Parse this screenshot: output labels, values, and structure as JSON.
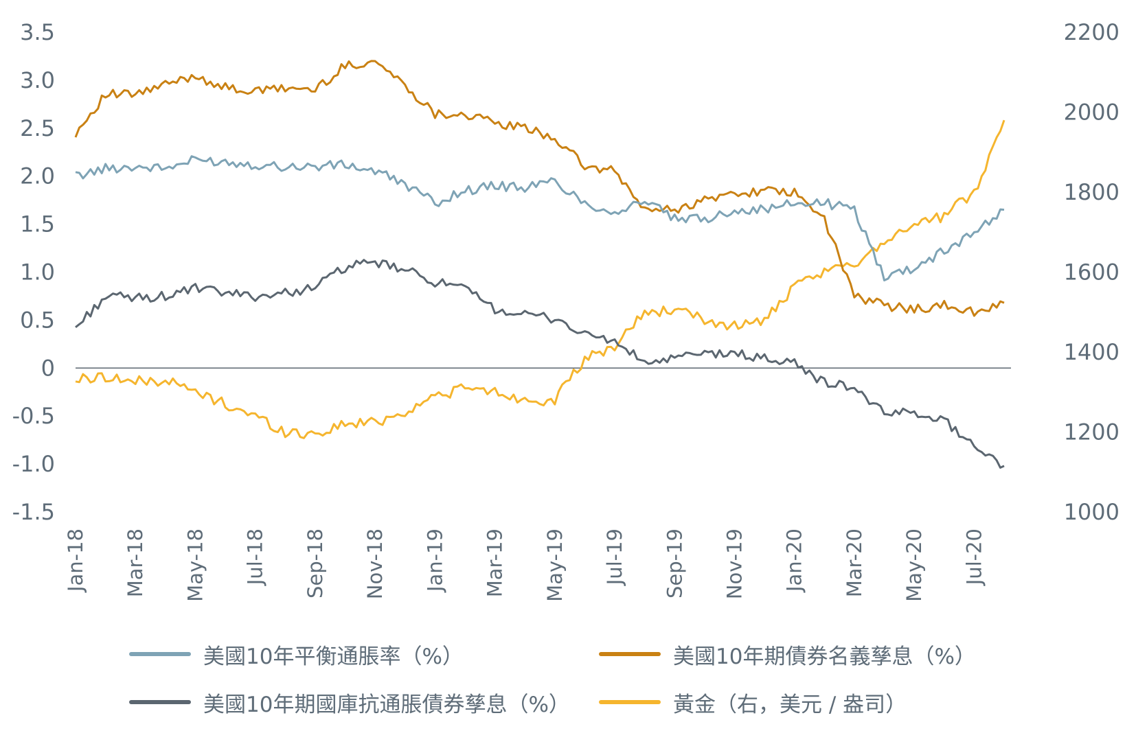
{
  "chart_data": {
    "type": "line",
    "title": "",
    "xlabel": "",
    "ylabel": "",
    "x_tick_labels": [
      "Jan-18",
      "Mar-18",
      "May-18",
      "Jul-18",
      "Sep-18",
      "Nov-18",
      "Jan-19",
      "Mar-19",
      "May-19",
      "Jul-19",
      "Sep-19",
      "Nov-19",
      "Jan-20",
      "Mar-20",
      "May-20",
      "Jul-20"
    ],
    "y_left_tick_labels": [
      "3.5",
      "3.0",
      "2.5",
      "2.0",
      "1.5",
      "1.0",
      "0.5",
      "0",
      "-0.5",
      "-1.0",
      "-1.5"
    ],
    "y_right_tick_labels": [
      "2200",
      "2000",
      "1800",
      "1600",
      "1400",
      "1200",
      "1000"
    ],
    "ylim_left": [
      -1.5,
      3.5
    ],
    "ylim_right": [
      1000,
      2200
    ],
    "zero_line": true,
    "grid": false,
    "legend_position": "bottom",
    "x": [
      "2018-01",
      "2018-02",
      "2018-03",
      "2018-04",
      "2018-05",
      "2018-06",
      "2018-07",
      "2018-08",
      "2018-09",
      "2018-10",
      "2018-11",
      "2018-12",
      "2019-01",
      "2019-02",
      "2019-03",
      "2019-04",
      "2019-05",
      "2019-06",
      "2019-07",
      "2019-08",
      "2019-09",
      "2019-10",
      "2019-11",
      "2019-12",
      "2020-01",
      "2020-02",
      "2020-03",
      "2020-04",
      "2020-05",
      "2020-06",
      "2020-07",
      "2020-08"
    ],
    "series": [
      {
        "name": "美國10年平衡通脹率（%）",
        "axis": "left",
        "color": "#7ea3b5",
        "values": [
          2.0,
          2.08,
          2.1,
          2.08,
          2.17,
          2.15,
          2.12,
          2.1,
          2.1,
          2.12,
          2.05,
          1.92,
          1.72,
          1.85,
          1.9,
          1.88,
          1.95,
          1.72,
          1.62,
          1.75,
          1.55,
          1.55,
          1.65,
          1.65,
          1.72,
          1.72,
          1.65,
          0.95,
          1.05,
          1.22,
          1.42,
          1.65
        ]
      },
      {
        "name": "美國10年期債券名義孳息（%）",
        "axis": "left",
        "color": "#c98113",
        "values": [
          2.45,
          2.85,
          2.85,
          2.95,
          3.05,
          2.92,
          2.88,
          2.92,
          2.9,
          3.15,
          3.2,
          2.95,
          2.65,
          2.65,
          2.55,
          2.5,
          2.4,
          2.1,
          2.05,
          1.65,
          1.65,
          1.75,
          1.82,
          1.85,
          1.82,
          1.55,
          0.75,
          0.65,
          0.62,
          0.65,
          0.58,
          0.68
        ]
      },
      {
        "name": "美國10年期國庫抗通脹債券孳息（%）",
        "axis": "left",
        "color": "#5b6670",
        "values": [
          0.42,
          0.75,
          0.73,
          0.75,
          0.83,
          0.78,
          0.75,
          0.78,
          0.85,
          1.05,
          1.1,
          1.02,
          0.9,
          0.82,
          0.62,
          0.55,
          0.52,
          0.35,
          0.28,
          0.05,
          0.1,
          0.15,
          0.15,
          0.1,
          0.05,
          -0.15,
          -0.2,
          -0.48,
          -0.45,
          -0.55,
          -0.8,
          -1.02
        ]
      },
      {
        "name": "黃金（右，美元 / 盎司）",
        "axis": "right",
        "color": "#f5b52e",
        "values": [
          1330,
          1340,
          1325,
          1330,
          1300,
          1270,
          1240,
          1200,
          1195,
          1220,
          1225,
          1250,
          1290,
          1310,
          1300,
          1280,
          1280,
          1380,
          1415,
          1500,
          1505,
          1480,
          1465,
          1480,
          1560,
          1600,
          1620,
          1680,
          1720,
          1740,
          1800,
          1980
        ]
      }
    ]
  },
  "legend": {
    "items": [
      {
        "label": "美國10年平衡通脹率（%）",
        "color": "#7ea3b5"
      },
      {
        "label": "美國10年期債券名義孳息（%）",
        "color": "#c98113"
      },
      {
        "label": "美國10年期國庫抗通脹債券孳息（%）",
        "color": "#5b6670"
      },
      {
        "label": "黃金（右，美元 / 盎司）",
        "color": "#f5b52e"
      }
    ]
  }
}
